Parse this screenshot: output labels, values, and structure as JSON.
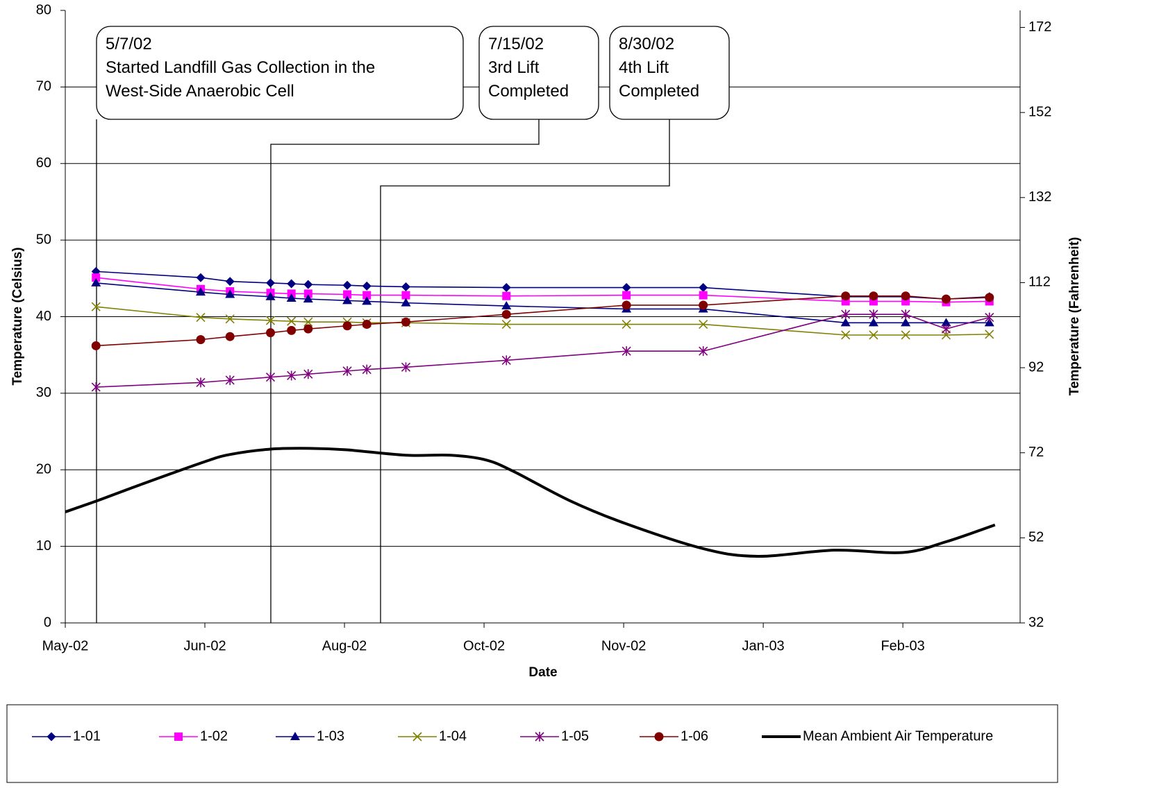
{
  "chart_data": {
    "type": "line",
    "x_label": "Date",
    "y_label": "Temperature (Celsius)",
    "y2_label": "Temperature (Fahrenheit)",
    "grid": true,
    "legend": "bottom",
    "xlim": [
      0,
      6.84
    ],
    "xticks": [
      {
        "value": 0,
        "label": "May-02"
      },
      {
        "value": 1,
        "label": "Jun-02"
      },
      {
        "value": 2,
        "label": "Aug-02"
      },
      {
        "value": 3,
        "label": "Oct-02"
      },
      {
        "value": 4,
        "label": "Nov-02"
      },
      {
        "value": 5,
        "label": "Jan-03"
      },
      {
        "value": 6,
        "label": "Feb-03"
      }
    ],
    "ylim": [
      0,
      80
    ],
    "yticks": [
      0,
      10,
      20,
      30,
      40,
      50,
      60,
      70,
      80
    ],
    "y2lim": [
      32,
      176
    ],
    "y2ticks": [
      32,
      52,
      72,
      92,
      112,
      132,
      152,
      172
    ],
    "x": [
      0.22,
      0.97,
      1.18,
      1.47,
      1.62,
      1.74,
      2.02,
      2.16,
      2.44,
      3.16,
      4.02,
      4.57,
      5.59,
      5.79,
      6.02,
      6.31,
      6.62
    ],
    "series": [
      {
        "name": "1-01",
        "color": "#000080",
        "marker": "diamond",
        "values": [
          45.9,
          45.1,
          44.6,
          44.4,
          44.3,
          44.2,
          44.1,
          44.0,
          43.9,
          43.8,
          43.8,
          43.8,
          42.6,
          42.6,
          42.6,
          42.3,
          42.6
        ]
      },
      {
        "name": "1-02",
        "color": "#ff00ff",
        "marker": "square",
        "values": [
          45.1,
          43.6,
          43.3,
          43.1,
          43.0,
          43.0,
          42.9,
          42.8,
          42.8,
          42.7,
          42.8,
          42.8,
          42.0,
          42.0,
          42.0,
          41.9,
          42.0
        ]
      },
      {
        "name": "1-03",
        "color": "#000080",
        "marker": "triangle",
        "values": [
          44.4,
          43.2,
          42.9,
          42.6,
          42.4,
          42.3,
          42.1,
          42.0,
          41.8,
          41.4,
          41.0,
          41.0,
          39.2,
          39.2,
          39.2,
          39.2,
          39.2
        ]
      },
      {
        "name": "1-04",
        "color": "#808000",
        "marker": "x",
        "values": [
          41.3,
          39.9,
          39.7,
          39.5,
          39.4,
          39.3,
          39.3,
          39.2,
          39.2,
          39.0,
          39.0,
          39.0,
          37.6,
          37.6,
          37.6,
          37.6,
          37.7
        ]
      },
      {
        "name": "1-05",
        "color": "#800080",
        "marker": "star",
        "values": [
          30.8,
          31.4,
          31.7,
          32.1,
          32.3,
          32.5,
          32.9,
          33.1,
          33.4,
          34.3,
          35.5,
          35.5,
          40.3,
          40.3,
          40.3,
          38.4,
          39.9
        ]
      },
      {
        "name": "1-06",
        "color": "#800000",
        "marker": "circle",
        "values": [
          36.2,
          37.0,
          37.4,
          37.9,
          38.2,
          38.4,
          38.8,
          39.0,
          39.3,
          40.3,
          41.5,
          41.5,
          42.7,
          42.7,
          42.7,
          42.3,
          42.5
        ]
      },
      {
        "name": "Mean Ambient Air Temperature",
        "color": "#000000",
        "smooth": true,
        "x": [
          0,
          0.22,
          0.53,
          0.99,
          1.18,
          1.47,
          1.75,
          2.02,
          2.44,
          2.76,
          3.01,
          3.21,
          3.61,
          4.01,
          4.57,
          4.96,
          5.51,
          6.0,
          6.31,
          6.66
        ],
        "values": [
          14.5,
          15.9,
          18.0,
          21.0,
          22.0,
          22.7,
          22.8,
          22.6,
          21.9,
          21.9,
          21.3,
          19.8,
          16.0,
          13.0,
          9.7,
          8.7,
          9.5,
          9.2,
          10.6,
          12.8
        ]
      }
    ],
    "annotations": [
      {
        "lines": [
          "5/7/02",
          "Started Landfill Gas Collection in the",
          "West-Side Anaerobic Cell"
        ]
      },
      {
        "lines": [
          "7/15/02",
          "3rd Lift",
          "Completed"
        ]
      },
      {
        "lines": [
          "8/30/02",
          "4th Lift",
          "Completed"
        ]
      }
    ]
  }
}
